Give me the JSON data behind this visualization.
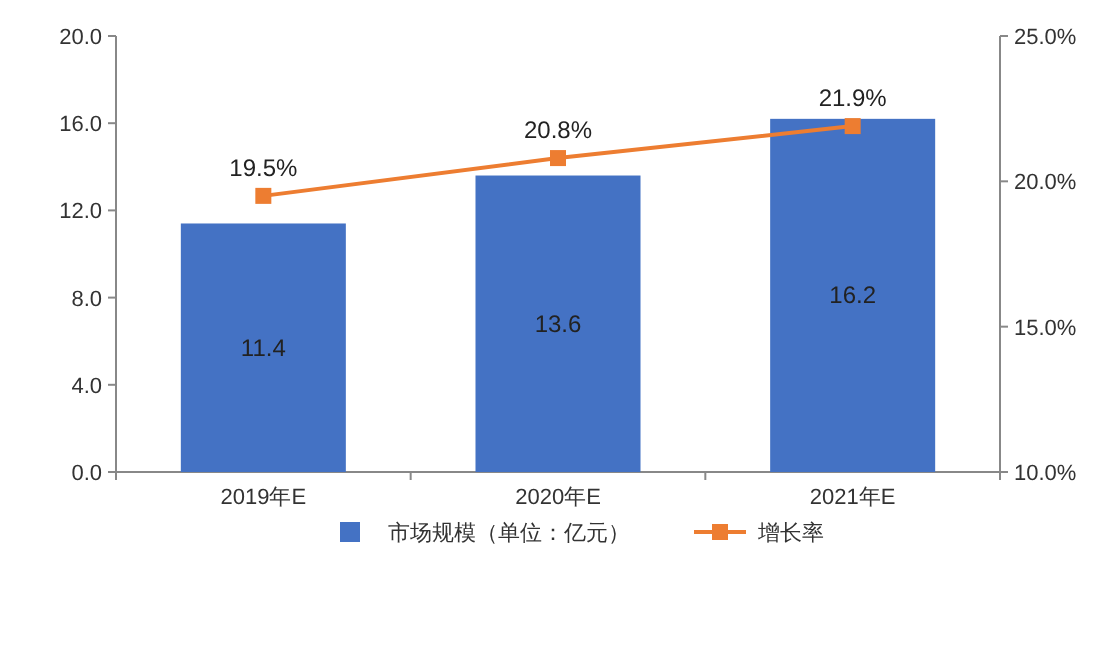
{
  "chart_data": {
    "type": "bar",
    "categories": [
      "2019年E",
      "2020年E",
      "2021年E"
    ],
    "series": [
      {
        "name": "市场规模（单位：亿元）",
        "color": "#4472c4",
        "values": [
          11.4,
          13.6,
          16.2
        ],
        "value_labels": [
          "11.4",
          "13.6",
          "16.2"
        ]
      },
      {
        "name": "增长率",
        "type": "line",
        "axis": "y2",
        "color": "#ed7d31",
        "marker": "square",
        "values": [
          19.5,
          20.8,
          21.9
        ],
        "value_labels": [
          "19.5%",
          "20.8%",
          "21.9%"
        ]
      }
    ],
    "ylim": [
      0,
      20
    ],
    "yticks": [
      {
        "value": 0,
        "label": "0.0"
      },
      {
        "value": 4,
        "label": "4.0"
      },
      {
        "value": 8,
        "label": "8.0"
      },
      {
        "value": 12,
        "label": "12.0"
      },
      {
        "value": 16,
        "label": "16.0"
      },
      {
        "value": 20,
        "label": "20.0"
      }
    ],
    "y2lim": [
      10,
      25
    ],
    "y2ticks": [
      {
        "value": 10,
        "label": "10.0%"
      },
      {
        "value": 15,
        "label": "15.0%"
      },
      {
        "value": 20,
        "label": "20.0%"
      },
      {
        "value": 25,
        "label": "25.0%"
      }
    ],
    "legend": "bottom",
    "grid": false
  }
}
